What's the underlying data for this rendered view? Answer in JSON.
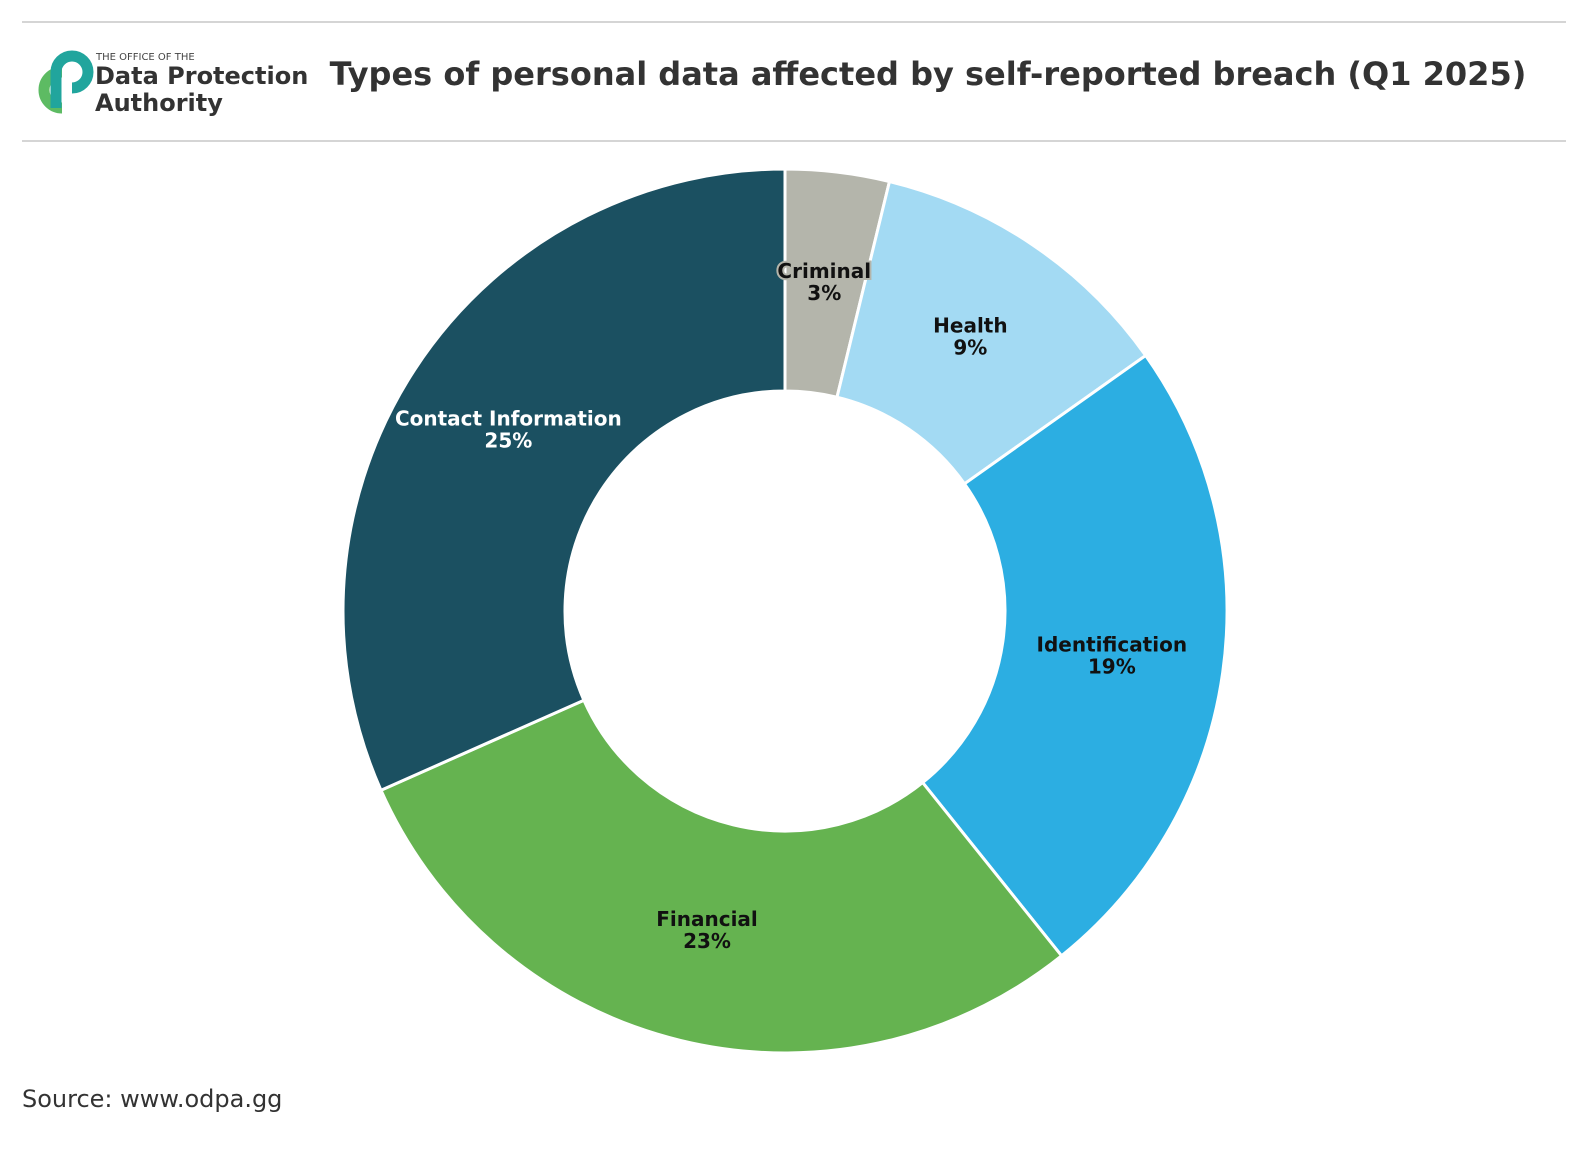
{
  "header": {
    "logo_small": "THE OFFICE OF THE",
    "logo_line1": "Data Protection",
    "logo_line2": "Authority"
  },
  "chart_data": {
    "type": "pie",
    "title": "Types of personal data affected by self-reported breach (Q1 2025)",
    "categories": [
      "Criminal",
      "Health",
      "Identification",
      "Financial",
      "Contact Information"
    ],
    "values": [
      3,
      9,
      19,
      23,
      25
    ],
    "value_labels": [
      "3%",
      "9%",
      "19%",
      "23%",
      "25%"
    ],
    "colors": [
      "#b4b5ab",
      "#a3daf3",
      "#2caee2",
      "#65b350",
      "#1b5061"
    ],
    "source": "Source: www.odpa.gg"
  }
}
